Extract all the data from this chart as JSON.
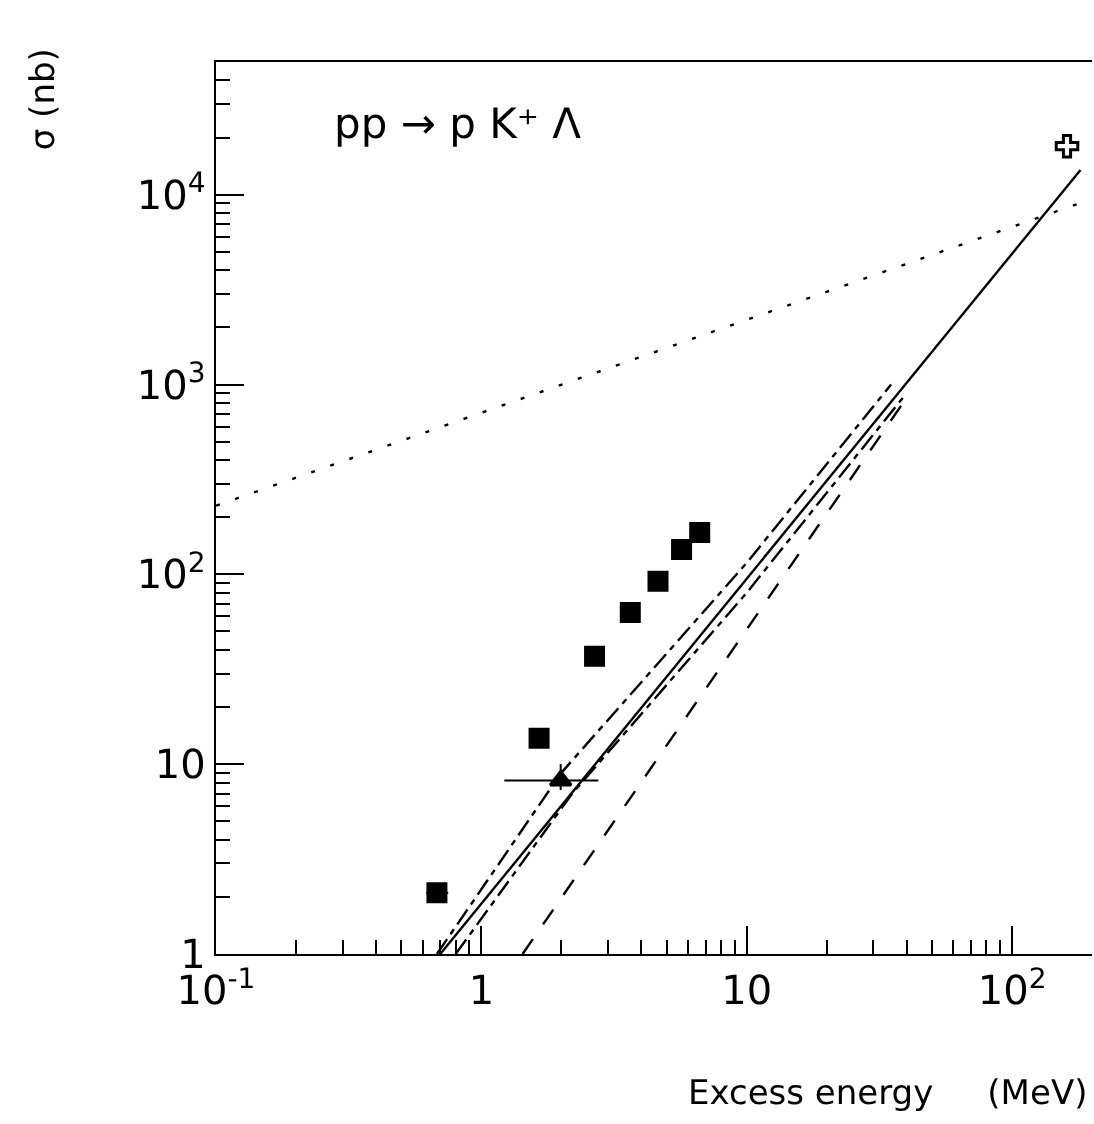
{
  "chart_data": {
    "type": "scatter",
    "xlabel": "Excess energy     (MeV)",
    "ylabel": "σ (nb)",
    "log": "xy",
    "grid": false,
    "xlim": [
      0.1,
      200
    ],
    "xticks": [
      {
        "value": 0.1,
        "label": "10$^{-1}$"
      },
      1,
      10,
      {
        "value": 100,
        "label": "10$^{2}$"
      }
    ],
    "ylim": [
      1,
      50000
    ],
    "yticks": [
      1,
      10,
      {
        "value": 100,
        "label": "10$^{2}$"
      },
      {
        "value": 1000,
        "label": "10$^{3}$"
      },
      {
        "value": 10000,
        "label": "10$^{4}$"
      }
    ],
    "annotations": [
      "pp → p K⁺ Λ"
    ],
    "series": [
      {
        "marker": "square",
        "color": "#000000",
        "x": [
          0.68,
          1.65,
          2.67,
          3.64,
          4.63,
          5.68,
          6.65
        ],
        "values": [
          2.1,
          13.7,
          37,
          63,
          92,
          135,
          166
        ],
        "xerrors": [
          [
            0.62,
            0.75
          ],
          null,
          null,
          null,
          null,
          null,
          null
        ]
      },
      {
        "marker": "triangle",
        "color": "#000000",
        "x": [
          1.99
        ],
        "values": [
          8.2
        ],
        "xerrors": [
          [
            1.22,
            2.76
          ]
        ],
        "errors": [
          [
            7.3,
            10
          ]
        ]
      },
      {
        "marker": "cross",
        "color": "#000000",
        "x": [
          161
        ],
        "values": [
          18000
        ]
      },
      {
        "type": "line",
        "line_style": "solid",
        "marker": "none",
        "color": "#000000",
        "x": [
          0.7,
          181
        ],
        "values": [
          1,
          13500
        ]
      },
      {
        "type": "line",
        "line_style": "dashdot",
        "marker": "none",
        "color": "#000000",
        "x": [
          0.68,
          2,
          10,
          35
        ],
        "values": [
          1,
          9,
          115,
          1000
        ]
      },
      {
        "type": "line",
        "line_style": "dashdot",
        "marker": "none",
        "color": "#000000",
        "x": [
          0.8,
          2.2,
          10,
          40
        ],
        "values": [
          1,
          7,
          80,
          900
        ]
      },
      {
        "type": "line",
        "line_style": "dashed",
        "marker": "none",
        "color": "#000000",
        "x": [
          1.43,
          40
        ],
        "values": [
          1,
          850
        ]
      },
      {
        "type": "line",
        "line_style": "dotted",
        "marker": "none",
        "color": "#000000",
        "x": [
          0.1,
          175
        ],
        "values": [
          230,
          8900
        ]
      }
    ]
  }
}
